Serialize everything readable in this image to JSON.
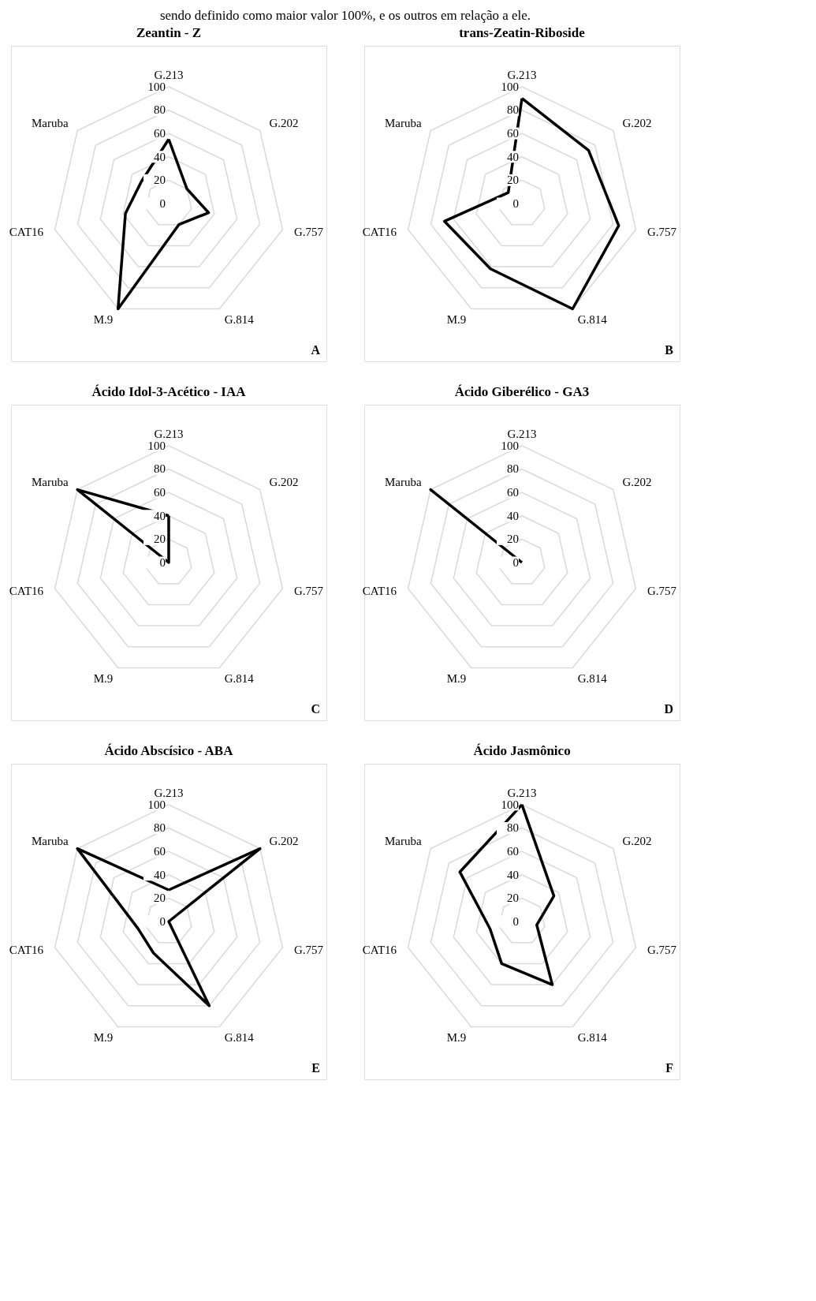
{
  "chart_data": [
    {
      "type": "radar",
      "title": "Zeantin - Z",
      "categories": [
        "G.213",
        "G.202",
        "G.757",
        "G.814",
        "M.9",
        "CAT16",
        "Maruba"
      ],
      "ylim": [
        0,
        100
      ],
      "yticks": [
        0,
        20,
        40,
        60,
        80,
        100
      ],
      "grid": true,
      "series": [
        {
          "color": "#000000",
          "values": [
            55,
            20,
            35,
            20,
            100,
            38,
            30
          ]
        }
      ],
      "annotations": [
        "A",
        "sendo definido como maior valor 100%, e os outros em relação a ele."
      ]
    },
    {
      "type": "radar",
      "title": "trans-Zeatin-Riboside",
      "categories": [
        "G.213",
        "G.202",
        "G.757",
        "G.814",
        "M.9",
        "CAT16",
        "Maruba"
      ],
      "ylim": [
        0,
        100
      ],
      "yticks": [
        0,
        20,
        40,
        60,
        80,
        100
      ],
      "grid": true,
      "series": [
        {
          "color": "#000000",
          "values": [
            90,
            73,
            85,
            100,
            62,
            68,
            15
          ]
        }
      ],
      "annotations": [
        "B"
      ]
    },
    {
      "type": "radar",
      "title": "Ácido Idol-3-Acético - IAA",
      "categories": [
        "G.213",
        "G.202",
        "G.757",
        "G.814",
        "M.9",
        "CAT16",
        "Maruba"
      ],
      "ylim": [
        0,
        100
      ],
      "yticks": [
        0,
        20,
        40,
        60,
        80,
        100
      ],
      "grid": true,
      "series": [
        {
          "color": "#000000",
          "values": [
            40,
            0,
            0,
            0,
            0,
            0,
            100
          ]
        }
      ],
      "annotations": [
        "C"
      ]
    },
    {
      "type": "radar",
      "title": "Ácido Giberélico - GA3",
      "categories": [
        "G.213",
        "G.202",
        "G.757",
        "G.814",
        "M.9",
        "CAT16",
        "Maruba"
      ],
      "ylim": [
        0,
        100
      ],
      "yticks": [
        0,
        20,
        40,
        60,
        80,
        100
      ],
      "grid": true,
      "series": [
        {
          "color": "#000000",
          "values": [
            0,
            0,
            0,
            0,
            0,
            0,
            100
          ]
        }
      ],
      "annotations": [
        "D"
      ]
    },
    {
      "type": "radar",
      "title": "Ácido Abscísico - ABA",
      "categories": [
        "G.213",
        "G.202",
        "G.757",
        "G.814",
        "M.9",
        "CAT16",
        "Maruba"
      ],
      "ylim": [
        0,
        100
      ],
      "yticks": [
        0,
        20,
        40,
        60,
        80,
        100
      ],
      "grid": true,
      "series": [
        {
          "color": "#000000",
          "values": [
            27,
            100,
            0,
            80,
            30,
            27,
            100
          ]
        }
      ],
      "annotations": [
        "E"
      ]
    },
    {
      "type": "radar",
      "title": "Ácido Jasmônico",
      "categories": [
        "G.213",
        "G.202",
        "G.757",
        "G.814",
        "M.9",
        "CAT16",
        "Maruba"
      ],
      "ylim": [
        0,
        100
      ],
      "yticks": [
        0,
        20,
        40,
        60,
        80,
        100
      ],
      "grid": true,
      "series": [
        {
          "color": "#000000",
          "values": [
            100,
            35,
            13,
            60,
            40,
            28,
            68
          ]
        }
      ],
      "annotations": [
        "F"
      ]
    }
  ]
}
